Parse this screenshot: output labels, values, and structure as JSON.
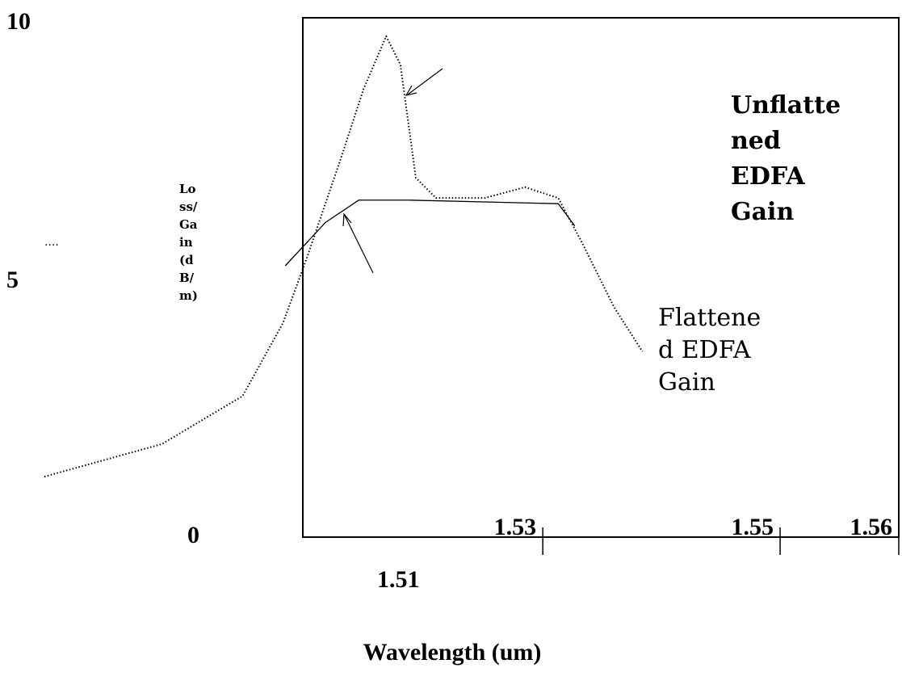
{
  "chart_data": {
    "type": "line",
    "x_label": "Wavelength (um)",
    "y_label_lines": [
      "Lo",
      "ss/",
      "Ga",
      "in",
      "(d",
      "B/",
      "m)"
    ],
    "xlim": [
      1.488,
      1.56
    ],
    "xticks": [
      1.51,
      1.53,
      1.55,
      1.56
    ],
    "ylim": [
      0,
      10
    ],
    "yticks": [
      0,
      5,
      10
    ],
    "series": [
      {
        "style": "dotted",
        "color": "#000",
        "x": [
          1.488,
          1.4979,
          1.5047,
          1.5081,
          1.5101,
          1.5129,
          1.5149,
          1.5168,
          1.518,
          1.5193,
          1.521,
          1.5251,
          1.5285,
          1.5313,
          1.5333,
          1.536,
          1.5384
        ],
        "values": [
          1.17,
          1.8,
          2.73,
          4.14,
          5.39,
          7.27,
          8.67,
          9.69,
          9.14,
          6.95,
          6.56,
          6.56,
          6.77,
          6.56,
          5.7,
          4.45,
          3.59
        ]
      },
      {
        "style": "solid",
        "color": "#000",
        "x": [
          1.5083,
          1.5117,
          1.5145,
          1.5186,
          1.5313,
          1.5327
        ],
        "values": [
          5.25,
          6.09,
          6.52,
          6.52,
          6.45,
          6.02
        ]
      }
    ],
    "annotations": [
      {
        "lines": [
          "Unflatte",
          "ned",
          "EDFA",
          "Gain"
        ],
        "bold": true
      },
      {
        "lines": [
          "Flattene",
          "d EDFA",
          "Gain"
        ],
        "bold": false
      },
      {
        "lines": [
          "...."
        ],
        "bold": false
      }
    ]
  }
}
